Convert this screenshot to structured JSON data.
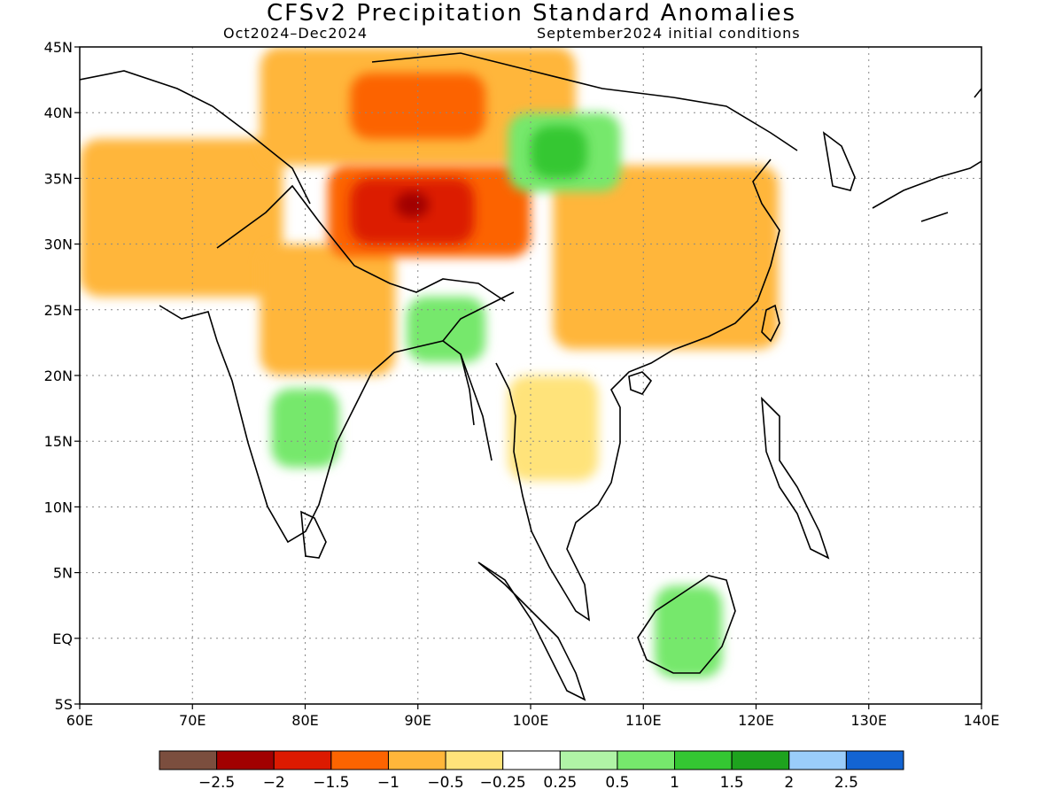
{
  "title": "CFSv2 Precipitation Standard Anomalies",
  "subtitle_left": "Oct2024–Dec2024",
  "subtitle_right": "September2024 initial conditions",
  "chart_data": {
    "type": "heatmap",
    "projection": "lat-lon",
    "lon_range": [
      60,
      140
    ],
    "lat_range": [
      -5,
      45
    ],
    "x_ticks": [
      "60E",
      "70E",
      "80E",
      "90E",
      "100E",
      "110E",
      "120E",
      "130E",
      "140E"
    ],
    "y_ticks": [
      "45N",
      "40N",
      "35N",
      "30N",
      "25N",
      "20N",
      "15N",
      "10N",
      "5N",
      "EQ",
      "5S"
    ],
    "grid": "dotted",
    "colorbar": {
      "colors": [
        "#7b4e3e",
        "#a10000",
        "#dc1a00",
        "#fc6400",
        "#ffb63a",
        "#ffe37a",
        "#ffffff",
        "#b0f4a6",
        "#76e86c",
        "#34c732",
        "#1ea31e",
        "#9acdfa",
        "#1364d2"
      ],
      "labels": [
        "−2.5",
        "−2",
        "−1.5",
        "−1",
        "−0.5",
        "−0.25",
        "0.25",
        "0.5",
        "1",
        "1.5",
        "2",
        "2.5"
      ]
    },
    "anomaly_regions": [
      {
        "level": "-0.5",
        "color": "#ffb63a",
        "lon": [
          60,
          78
        ],
        "lat": [
          26,
          38
        ]
      },
      {
        "level": "-0.5",
        "color": "#ffb63a",
        "lon": [
          76,
          88
        ],
        "lat": [
          20,
          30
        ]
      },
      {
        "level": "-0.5",
        "color": "#ffb63a",
        "lon": [
          102,
          122
        ],
        "lat": [
          22,
          36
        ]
      },
      {
        "level": "-0.5",
        "color": "#ffb63a",
        "lon": [
          76,
          104
        ],
        "lat": [
          36,
          45
        ]
      },
      {
        "level": "-0.25",
        "color": "#ffe37a",
        "lon": [
          98,
          106
        ],
        "lat": [
          12,
          20
        ]
      },
      {
        "level": "-1",
        "color": "#fc6400",
        "lon": [
          82,
          100
        ],
        "lat": [
          29,
          36
        ]
      },
      {
        "level": "-1",
        "color": "#fc6400",
        "lon": [
          84,
          96
        ],
        "lat": [
          38,
          43
        ]
      },
      {
        "level": "-1.5",
        "color": "#dc1a00",
        "lon": [
          84,
          95
        ],
        "lat": [
          30,
          35
        ]
      },
      {
        "level": "-2",
        "color": "#a10000",
        "lon": [
          88,
          91
        ],
        "lat": [
          32,
          34
        ]
      },
      {
        "level": "0.5",
        "color": "#76e86c",
        "lon": [
          77,
          83
        ],
        "lat": [
          13,
          19
        ]
      },
      {
        "level": "0.5",
        "color": "#76e86c",
        "lon": [
          89,
          96
        ],
        "lat": [
          21,
          26
        ]
      },
      {
        "level": "0.5",
        "color": "#76e86c",
        "lon": [
          98,
          108
        ],
        "lat": [
          34,
          40
        ]
      },
      {
        "level": "1",
        "color": "#34c732",
        "lon": [
          100,
          105
        ],
        "lat": [
          35,
          39
        ]
      },
      {
        "level": "0.5",
        "color": "#76e86c",
        "lon": [
          111,
          117
        ],
        "lat": [
          -3,
          4
        ]
      }
    ]
  }
}
